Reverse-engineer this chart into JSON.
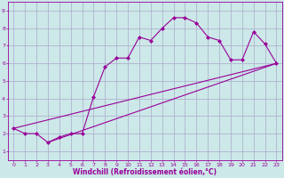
{
  "title": "",
  "xlabel": "Windchill (Refroidissement éolien,°C)",
  "ylabel": "",
  "bg_color": "#cce8e8",
  "grid_color": "#aaaacc",
  "line_color": "#990099",
  "xlim": [
    -0.5,
    23.5
  ],
  "ylim": [
    0.5,
    9.5
  ],
  "xticks": [
    0,
    1,
    2,
    3,
    4,
    5,
    6,
    7,
    8,
    9,
    10,
    11,
    12,
    13,
    14,
    15,
    16,
    17,
    18,
    19,
    20,
    21,
    22,
    23
  ],
  "yticks": [
    1,
    2,
    3,
    4,
    5,
    6,
    7,
    8,
    9
  ],
  "lines": [
    {
      "x": [
        0,
        1,
        2,
        3,
        4,
        5,
        6,
        7,
        8,
        9,
        10,
        11,
        12,
        13,
        14,
        15,
        16,
        17,
        18,
        19,
        20,
        21,
        22,
        23
      ],
      "y": [
        2.3,
        2.0,
        2.0,
        1.5,
        1.8,
        2.0,
        2.0,
        4.1,
        5.8,
        6.3,
        6.3,
        7.5,
        7.3,
        8.0,
        8.6,
        8.6,
        8.3,
        7.5,
        7.3,
        6.2,
        6.2,
        7.8,
        7.1,
        6.0
      ],
      "has_marker": true
    },
    {
      "x": [
        0,
        23
      ],
      "y": [
        2.3,
        6.0
      ],
      "has_marker": false
    },
    {
      "x": [
        3,
        23
      ],
      "y": [
        1.5,
        6.0
      ],
      "has_marker": false
    }
  ],
  "marker": "D",
  "markersize": 2,
  "linewidth": 0.8,
  "tick_fontsize": 4.5,
  "xlabel_fontsize": 5.5
}
